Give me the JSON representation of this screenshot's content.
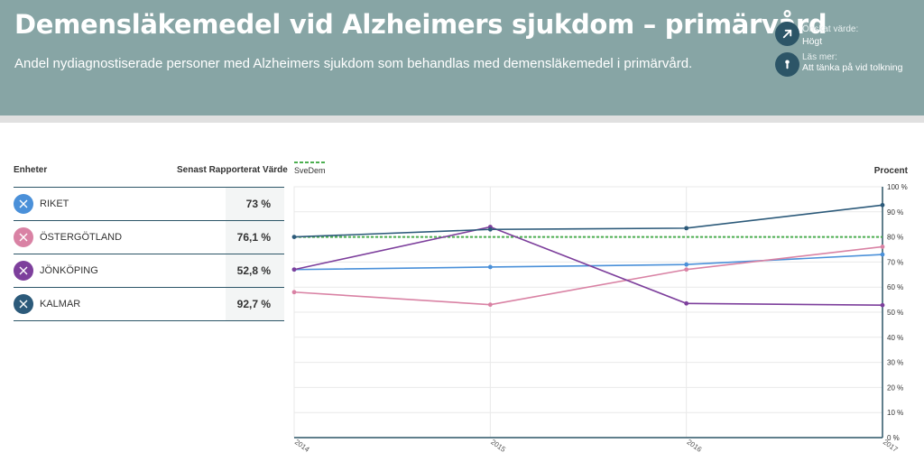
{
  "header": {
    "title": "Demensläkemedel vid Alzheimers sjukdom – primärvård",
    "subtitle": "Andel nydiagnostiserade personer med Alzheimers sjukdom som behandlas med demensläkemedel i primärvård.",
    "desired_label": "Önskat värde:",
    "desired_value": "Högt",
    "readmore_label": "Läs mer:",
    "readmore_link": "Att tänka på vid tolkning",
    "colors": {
      "header_bg": "#87a5a5",
      "button_bg": "#2c5567"
    },
    "icons": {
      "desired": "arrow-up-right-icon",
      "readmore": "info-icon"
    }
  },
  "legend": {
    "col_units": "Enheter",
    "col_value": "Senast Rapporterat Värde",
    "rows": [
      {
        "name": "RIKET",
        "value": "73 %",
        "color": "#4a90d9",
        "icon": "close-icon"
      },
      {
        "name": "ÖSTERGÖTLAND",
        "value": "76,1 %",
        "color": "#d982a4",
        "icon": "close-icon"
      },
      {
        "name": "JÖNKÖPING",
        "value": "52,8 %",
        "color": "#7d3f9c",
        "icon": "close-icon"
      },
      {
        "name": "KALMAR",
        "value": "92,7 %",
        "color": "#2c5a7a",
        "icon": "close-icon"
      }
    ]
  },
  "chart_data": {
    "type": "line",
    "ylabel": "Procent",
    "ylim": [
      0,
      100
    ],
    "y_tick_values": [
      0,
      10,
      20,
      30,
      40,
      50,
      60,
      70,
      80,
      90,
      100
    ],
    "y_tick_labels": [
      "0 %",
      "10 %",
      "20 %",
      "30 %",
      "40 %",
      "50 %",
      "60 %",
      "70 %",
      "80 %",
      "90 %",
      "100 %"
    ],
    "x": [
      "2014",
      "2015",
      "2016",
      "2017"
    ],
    "grid": true,
    "legend_position": "top-left",
    "reference": {
      "name": "SveDem",
      "value": 80,
      "color": "#4caf50"
    },
    "series": [
      {
        "name": "RIKET",
        "color": "#4a90d9",
        "values": [
          67,
          68,
          69,
          73
        ]
      },
      {
        "name": "ÖSTERGÖTLAND",
        "color": "#d982a4",
        "values": [
          58,
          53,
          67,
          76.1
        ]
      },
      {
        "name": "JÖNKÖPING",
        "color": "#7d3f9c",
        "values": [
          67,
          84,
          53.5,
          52.8
        ]
      },
      {
        "name": "KALMAR",
        "color": "#2c5a7a",
        "values": [
          80,
          83,
          83.5,
          92.7
        ]
      }
    ]
  }
}
